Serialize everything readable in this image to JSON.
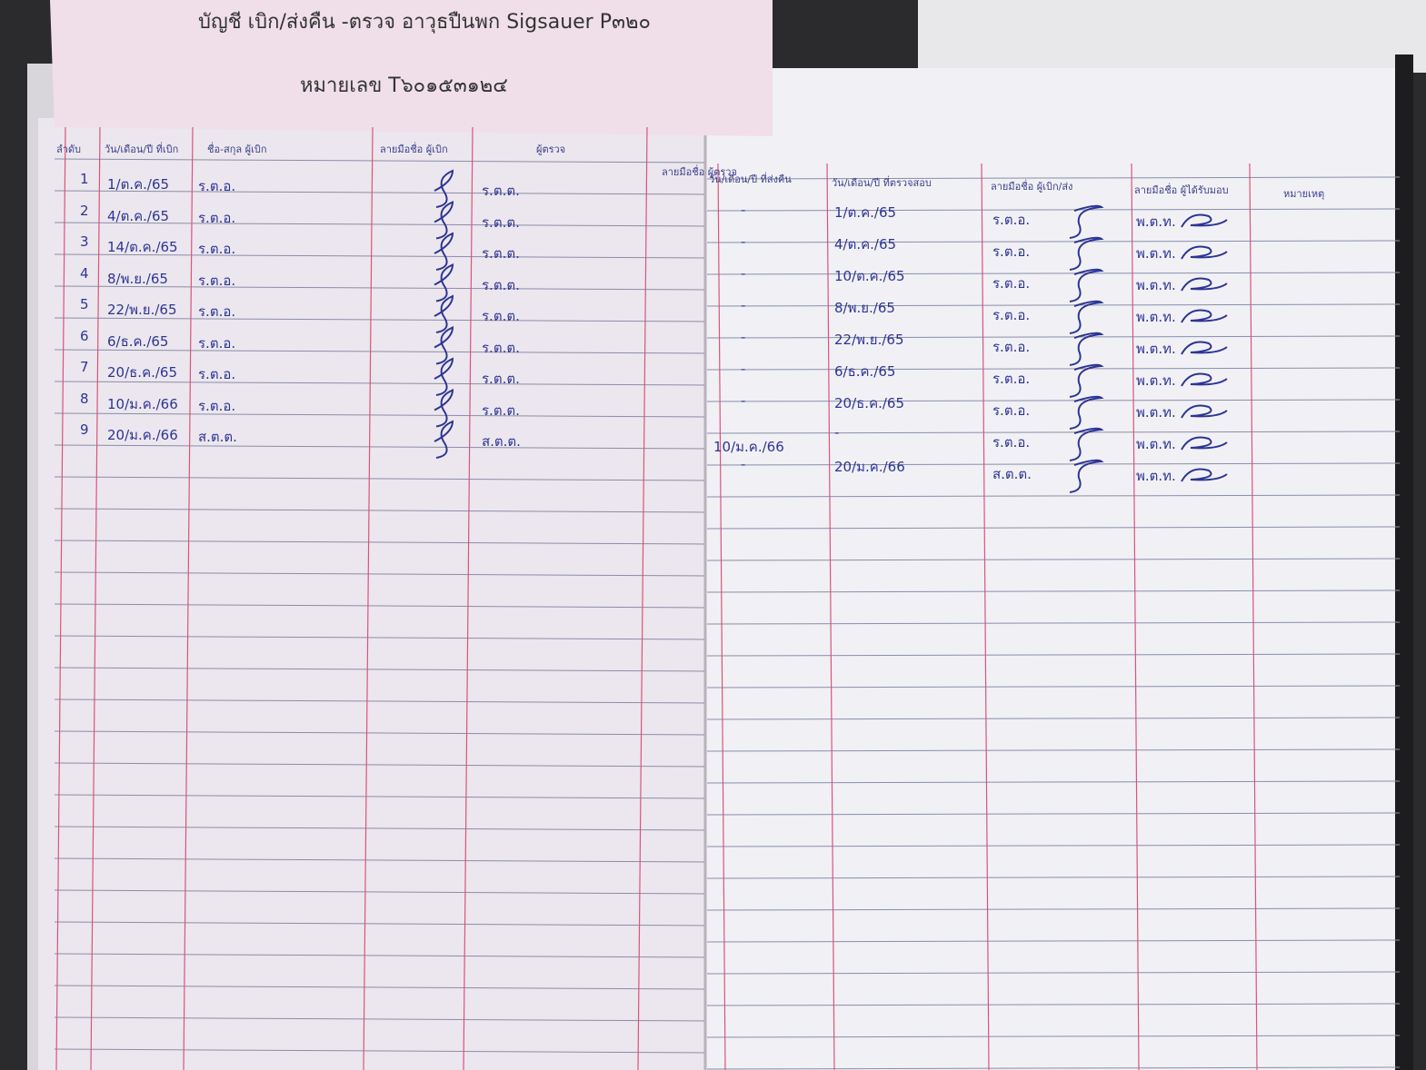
{
  "header": {
    "title": "บัญชี เบิก/ส่งคืน -ตรวจ อาวุธปืนพก Sigsauer P๓๒๐",
    "number": "หมายเลข T๖๐๑๕๓๑๒๔"
  },
  "left_page": {
    "columns": [
      "ลำดับ",
      "วัน/เดือน/ปี ที่เบิก",
      "ชื่อ-สกุล ผู้เบิก",
      "ลายมือชื่อ ผู้เบิก",
      "ผู้ตรวจ",
      "ลายมือชื่อ ผู้ตรวจ"
    ],
    "rows": [
      {
        "no": "1",
        "date": "1/ต.ค./65",
        "rank": "ร.ต.อ.",
        "checker": "ร.ต.ต."
      },
      {
        "no": "2",
        "date": "4/ต.ค./65",
        "rank": "ร.ต.อ.",
        "checker": "ร.ต.ต."
      },
      {
        "no": "3",
        "date": "14/ต.ค./65",
        "rank": "ร.ต.อ.",
        "checker": "ร.ต.ต."
      },
      {
        "no": "4",
        "date": "8/พ.ย./65",
        "rank": "ร.ต.อ.",
        "checker": "ร.ต.ต."
      },
      {
        "no": "5",
        "date": "22/พ.ย./65",
        "rank": "ร.ต.อ.",
        "checker": "ร.ต.ต."
      },
      {
        "no": "6",
        "date": "6/ธ.ค./65",
        "rank": "ร.ต.อ.",
        "checker": "ร.ต.ต."
      },
      {
        "no": "7",
        "date": "20/ธ.ค./65",
        "rank": "ร.ต.อ.",
        "checker": "ร.ต.ต."
      },
      {
        "no": "8",
        "date": "10/ม.ค./66",
        "rank": "ร.ต.อ.",
        "checker": "ร.ต.ต."
      },
      {
        "no": "9",
        "date": "20/ม.ค./66",
        "rank": "ส.ต.ต.",
        "checker": "ส.ต.ต."
      }
    ]
  },
  "right_page": {
    "columns": [
      "วัน/เดือน/ปี ที่ส่งคืน",
      "วัน/เดือน/ปี ที่ตรวจสอบ",
      "ลายมือชื่อ ผู้เบิก/ส่ง",
      "ลายมือชื่อ ผู้ได้รับมอบ",
      "หมายเหตุ"
    ],
    "rows": [
      {
        "returned": "-",
        "checked": "1/ต.ค./65",
        "rank": "ร.ต.อ.",
        "receiver": "พ.ต.ท."
      },
      {
        "returned": "-",
        "checked": "4/ต.ค./65",
        "rank": "ร.ต.อ.",
        "receiver": "พ.ต.ท."
      },
      {
        "returned": "-",
        "checked": "10/ต.ค./65",
        "rank": "ร.ต.อ.",
        "receiver": "พ.ต.ท."
      },
      {
        "returned": "-",
        "checked": "8/พ.ย./65",
        "rank": "ร.ต.อ.",
        "receiver": "พ.ต.ท."
      },
      {
        "returned": "-",
        "checked": "22/พ.ย./65",
        "rank": "ร.ต.อ.",
        "receiver": "พ.ต.ท."
      },
      {
        "returned": "-",
        "checked": "6/ธ.ค./65",
        "rank": "ร.ต.อ.",
        "receiver": "พ.ต.ท."
      },
      {
        "returned": "-",
        "checked": "20/ธ.ค./65",
        "rank": "ร.ต.อ.",
        "receiver": "พ.ต.ท."
      },
      {
        "returned": "10/ม.ค./66",
        "checked": "-",
        "rank": "ร.ต.อ.",
        "receiver": "พ.ต.ท."
      },
      {
        "returned": "-",
        "checked": "20/ม.ค./66",
        "rank": "ส.ต.ต.",
        "receiver": "พ.ต.ท."
      }
    ]
  }
}
